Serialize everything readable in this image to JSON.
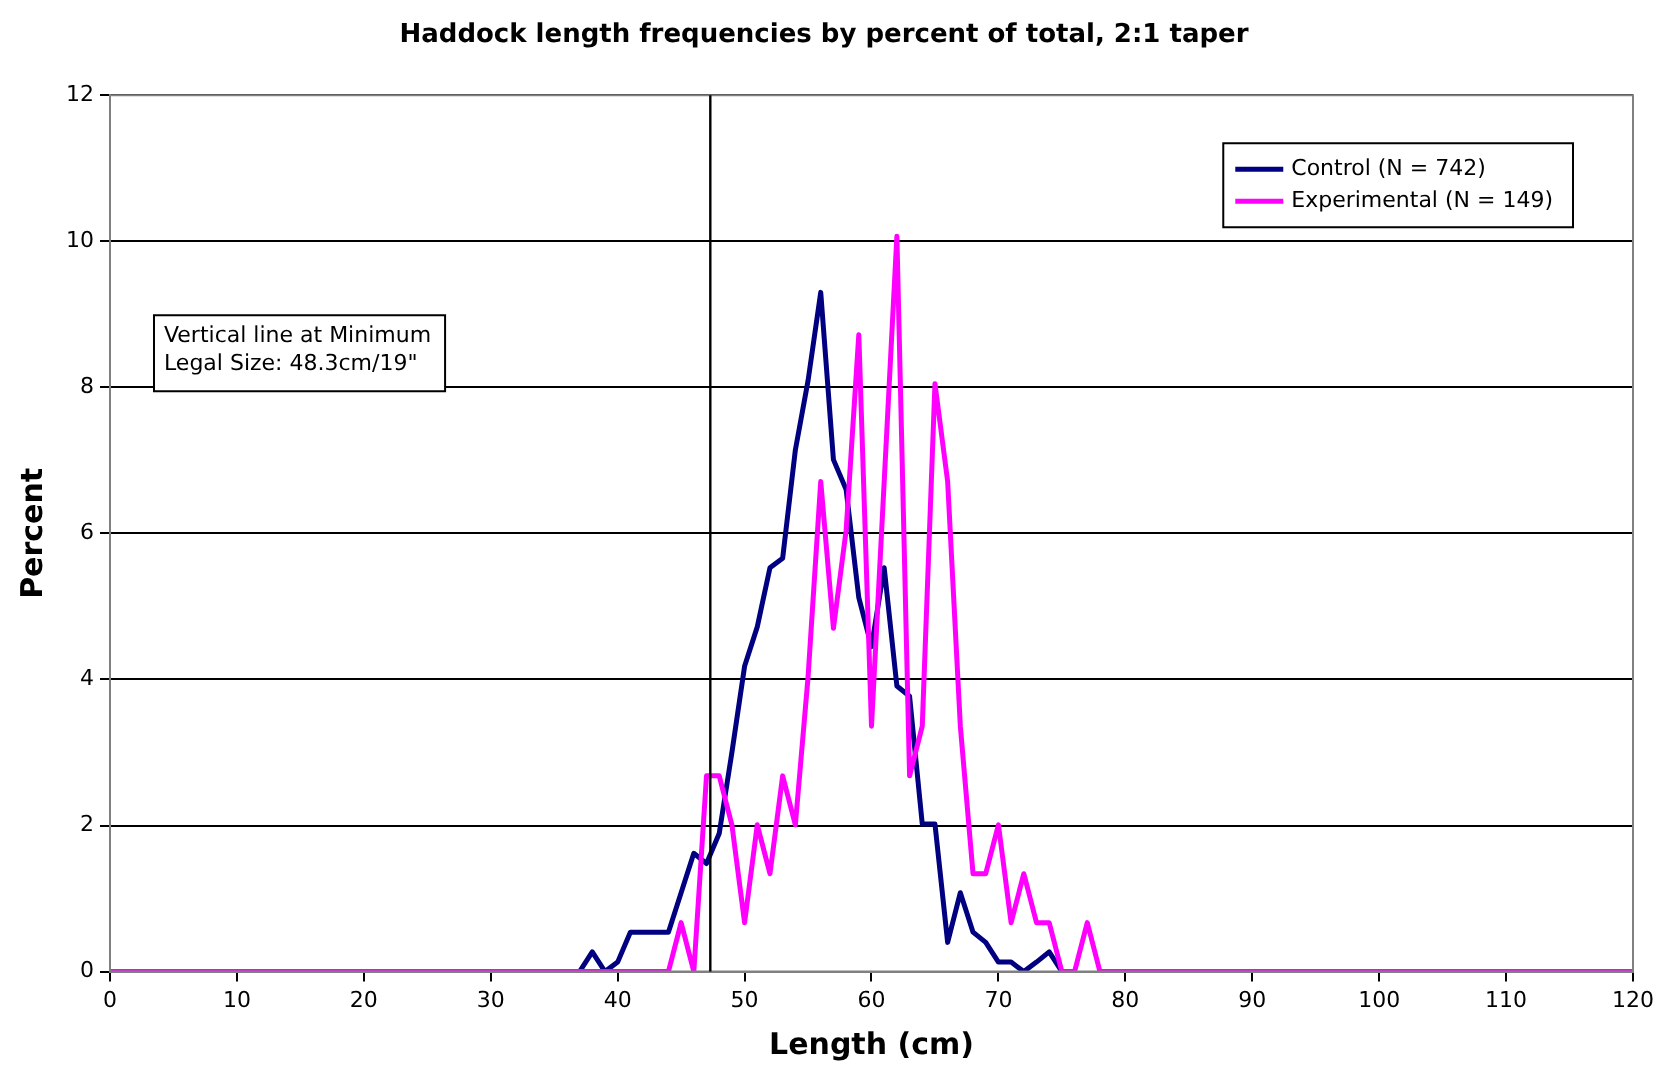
{
  "chart_data": {
    "type": "line",
    "title": "Haddock length frequencies by percent of total, 2:1 taper",
    "xlabel": "Length (cm)",
    "ylabel": "Percent",
    "x": [
      0,
      1,
      2,
      3,
      4,
      5,
      6,
      7,
      8,
      9,
      10,
      11,
      12,
      13,
      14,
      15,
      16,
      17,
      18,
      19,
      20,
      21,
      22,
      23,
      24,
      25,
      26,
      27,
      28,
      29,
      30,
      31,
      32,
      33,
      34,
      35,
      36,
      37,
      38,
      39,
      40,
      41,
      42,
      43,
      44,
      45,
      46,
      47,
      48,
      49,
      50,
      51,
      52,
      53,
      54,
      55,
      56,
      57,
      58,
      59,
      60,
      61,
      62,
      63,
      64,
      65,
      66,
      67,
      68,
      69,
      70,
      71,
      72,
      73,
      74,
      75,
      76,
      77,
      78,
      79,
      80,
      81,
      82,
      83,
      84,
      85,
      86,
      87,
      88,
      89,
      90,
      91,
      92,
      93,
      94,
      95,
      96,
      97,
      98,
      99,
      100,
      101,
      102,
      103,
      104,
      105,
      106,
      107,
      108,
      109,
      110,
      111,
      112,
      113,
      114,
      115,
      116,
      117,
      118,
      119,
      120
    ],
    "series": [
      {
        "name": "Control (N = 742)",
        "color": "#000080",
        "values": [
          null,
          null,
          null,
          null,
          null,
          null,
          null,
          null,
          null,
          null,
          null,
          null,
          null,
          null,
          null,
          null,
          null,
          null,
          null,
          null,
          null,
          null,
          null,
          null,
          null,
          null,
          null,
          null,
          null,
          null,
          null,
          null,
          null,
          null,
          null,
          null,
          null,
          0,
          0.27,
          0,
          0.13,
          0.54,
          0.54,
          0.54,
          0.54,
          1.08,
          1.62,
          1.48,
          1.89,
          3.0,
          4.18,
          4.72,
          5.53,
          5.66,
          7.14,
          8.09,
          9.3,
          7.01,
          6.6,
          5.12,
          4.45,
          5.53,
          3.91,
          3.77,
          2.02,
          2.02,
          0.4,
          1.08,
          0.54,
          0.4,
          0.13,
          0.13,
          0,
          0.13,
          0.27,
          0,
          null,
          null,
          null,
          null,
          null,
          null,
          null,
          null,
          null,
          null,
          null,
          null,
          null,
          null,
          null,
          null,
          null,
          null,
          null,
          null,
          null,
          null,
          null,
          null,
          null,
          null,
          null,
          null,
          null,
          null,
          null,
          null,
          null,
          null,
          null,
          null,
          null,
          null,
          null,
          null,
          null,
          null,
          null,
          null,
          null
        ]
      },
      {
        "name": "Experimental (N = 149)",
        "color": "#ff00ff",
        "values": [
          0,
          0,
          0,
          0,
          0,
          0,
          0,
          0,
          0,
          0,
          0,
          0,
          0,
          0,
          0,
          0,
          0,
          0,
          0,
          0,
          0,
          0,
          0,
          0,
          0,
          0,
          0,
          0,
          0,
          0,
          0,
          0,
          0,
          0,
          0,
          0,
          0,
          0,
          0,
          0,
          0,
          0,
          0,
          0,
          0,
          0.67,
          0,
          2.68,
          2.68,
          2.01,
          0.67,
          2.01,
          1.34,
          2.68,
          2.01,
          4.03,
          6.71,
          4.7,
          6.04,
          8.72,
          3.36,
          6.71,
          10.07,
          2.68,
          3.36,
          8.05,
          6.71,
          3.36,
          1.34,
          1.34,
          2.01,
          0.67,
          1.34,
          0.67,
          0.67,
          0,
          0,
          0.67,
          0,
          0,
          0,
          0,
          0,
          0,
          0,
          0,
          0,
          0,
          0,
          0,
          0,
          0,
          0,
          0,
          0,
          0,
          0,
          0,
          0,
          0,
          0,
          0,
          0,
          0,
          0,
          0,
          0,
          0,
          0,
          0,
          0,
          0,
          0,
          0,
          0,
          0,
          0,
          0,
          0,
          0,
          0
        ]
      }
    ],
    "xlim": [
      0,
      120
    ],
    "xticks": [
      0,
      10,
      20,
      30,
      40,
      50,
      60,
      70,
      80,
      90,
      100,
      110,
      120
    ],
    "ylim": [
      0,
      12
    ],
    "yticks": [
      0,
      2,
      4,
      6,
      8,
      10,
      12
    ],
    "grid": "y",
    "legend": "top right",
    "marker": "none",
    "line_style": "solid",
    "ref_lines": [
      {
        "axis": "x",
        "value": 47.3,
        "color": "#000000"
      }
    ],
    "annotations": [
      "Vertical line at Minimum\nLegal Size: 48.3cm/19\""
    ]
  }
}
